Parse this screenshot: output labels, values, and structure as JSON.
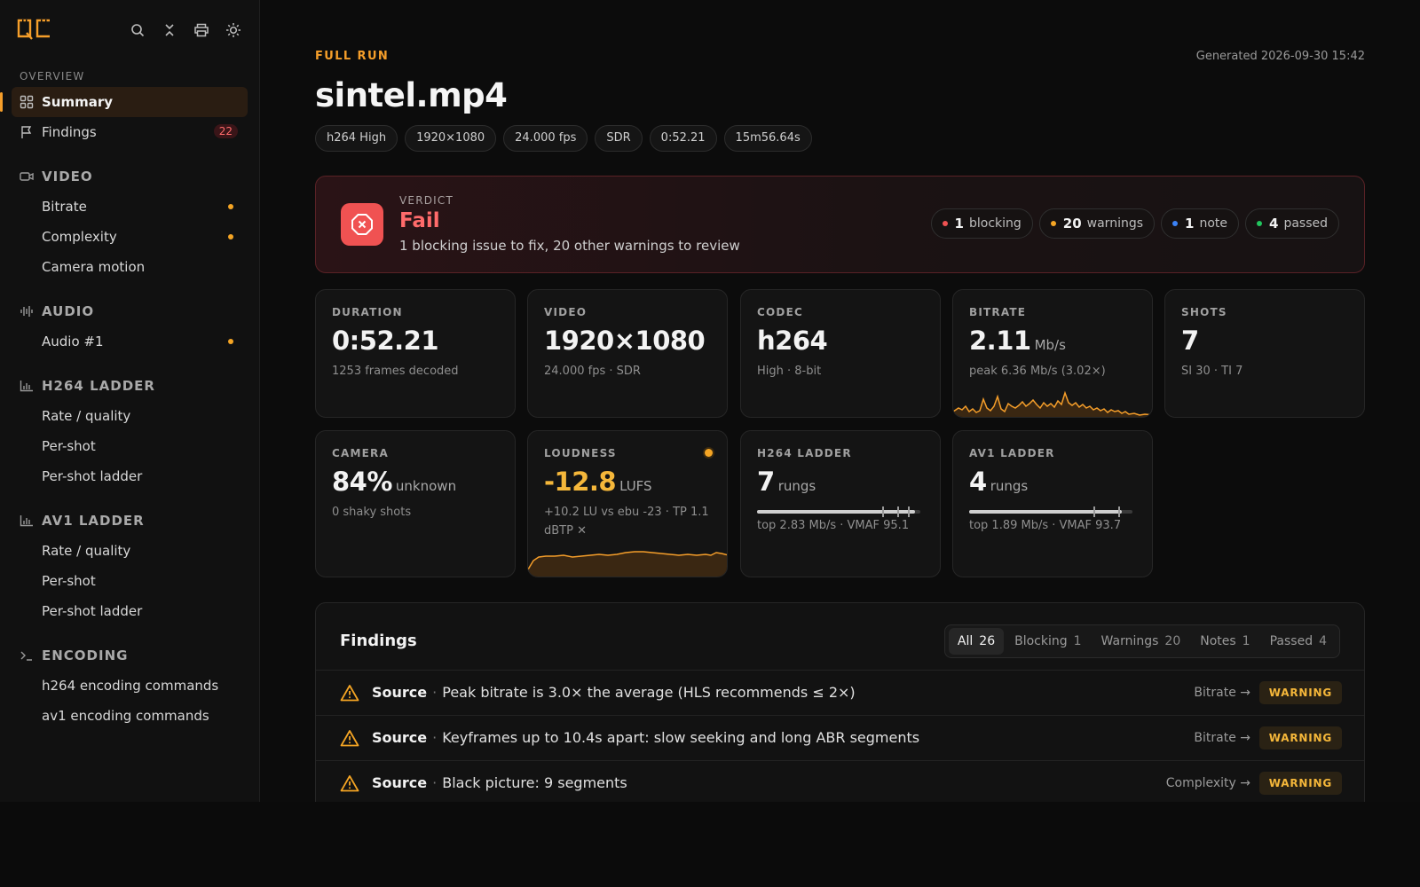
{
  "app": {
    "logo": "QC"
  },
  "sidebar": {
    "overview_label": "OVERVIEW",
    "overview_items": [
      {
        "label": "Summary",
        "active": true
      },
      {
        "label": "Findings",
        "count": "22"
      }
    ],
    "sections": [
      {
        "title": "VIDEO",
        "icon": "video-camera-icon",
        "items": [
          {
            "label": "Bitrate",
            "flag": true
          },
          {
            "label": "Complexity",
            "flag": true
          },
          {
            "label": "Camera motion",
            "flag": false
          }
        ]
      },
      {
        "title": "AUDIO",
        "icon": "audio-waveform-icon",
        "items": [
          {
            "label": "Audio #1",
            "flag": true
          }
        ]
      },
      {
        "title": "H264 LADDER",
        "icon": "bar-chart-icon",
        "items": [
          {
            "label": "Rate / quality"
          },
          {
            "label": "Per-shot"
          },
          {
            "label": "Per-shot ladder"
          }
        ]
      },
      {
        "title": "AV1 LADDER",
        "icon": "bar-chart-icon",
        "items": [
          {
            "label": "Rate / quality"
          },
          {
            "label": "Per-shot"
          },
          {
            "label": "Per-shot ladder"
          }
        ]
      },
      {
        "title": "ENCODING",
        "icon": "terminal-icon",
        "items": [
          {
            "label": "h264 encoding commands"
          },
          {
            "label": "av1 encoding commands"
          }
        ]
      }
    ]
  },
  "header": {
    "run_label": "FULL RUN",
    "generated": "Generated 2026-09-30 15:42",
    "title": "sintel.mp4",
    "chips": [
      "h264 High",
      "1920×1080",
      "24.000 fps",
      "SDR",
      "0:52.21",
      "15m56.64s"
    ]
  },
  "verdict": {
    "label": "VERDICT",
    "title": "Fail",
    "subtitle": "1 blocking issue to fix, 20 other warnings to review",
    "pills": [
      {
        "count": "1",
        "label": "blocking",
        "color": "#f05252"
      },
      {
        "count": "20",
        "label": "warnings",
        "color": "#f5a524"
      },
      {
        "count": "1",
        "label": "note",
        "color": "#3b82f6"
      },
      {
        "count": "4",
        "label": "passed",
        "color": "#22c55e"
      }
    ]
  },
  "cards": {
    "duration": {
      "label": "DURATION",
      "value": "0:52.21",
      "sub": "1253 frames decoded"
    },
    "video": {
      "label": "VIDEO",
      "value": "1920×1080",
      "sub": "24.000 fps · SDR"
    },
    "codec": {
      "label": "CODEC",
      "value": "h264",
      "sub": "High · 8-bit"
    },
    "bitrate": {
      "label": "BITRATE",
      "value": "2.11",
      "unit": "Mb/s",
      "sub": "peak 6.36 Mb/s (3.02×)"
    },
    "shots": {
      "label": "SHOTS",
      "value": "7",
      "sub": "SI 30 · TI 7"
    },
    "camera": {
      "label": "CAMERA",
      "value": "84%",
      "unit": "unknown",
      "sub": "0 shaky shots"
    },
    "loudness": {
      "label": "LOUDNESS",
      "value": "-12.8",
      "unit": "LUFS",
      "sub": "+10.2 LU vs ebu -23 · TP 1.1 dBTP ✕"
    },
    "h264_ladder": {
      "label": "H264 LADDER",
      "value": "7",
      "unit": "rungs",
      "sub": "top 2.83 Mb/s · VMAF 95.1"
    },
    "av1_ladder": {
      "label": "AV1 LADDER",
      "value": "4",
      "unit": "rungs",
      "sub": "top 1.89 Mb/s · VMAF 93.7"
    }
  },
  "findings": {
    "title": "Findings",
    "tabs": [
      {
        "label": "All",
        "count": "26",
        "active": true
      },
      {
        "label": "Blocking",
        "count": "1"
      },
      {
        "label": "Warnings",
        "count": "20"
      },
      {
        "label": "Notes",
        "count": "1"
      },
      {
        "label": "Passed",
        "count": "4"
      }
    ],
    "rows": [
      {
        "source": "Source",
        "message": "Peak bitrate is 3.0× the average (HLS recommends ≤ 2×)",
        "link": "Bitrate →",
        "badge": "WARNING"
      },
      {
        "source": "Source",
        "message": "Keyframes up to 10.4s apart: slow seeking and long ABR segments",
        "link": "Bitrate →",
        "badge": "WARNING"
      },
      {
        "source": "Source",
        "message": "Black picture: 9 segments",
        "link": "Complexity →",
        "badge": "WARNING"
      }
    ]
  },
  "colors": {
    "accent": "#f59e2a",
    "fail": "#f05252",
    "warning": "#f5b73a"
  }
}
